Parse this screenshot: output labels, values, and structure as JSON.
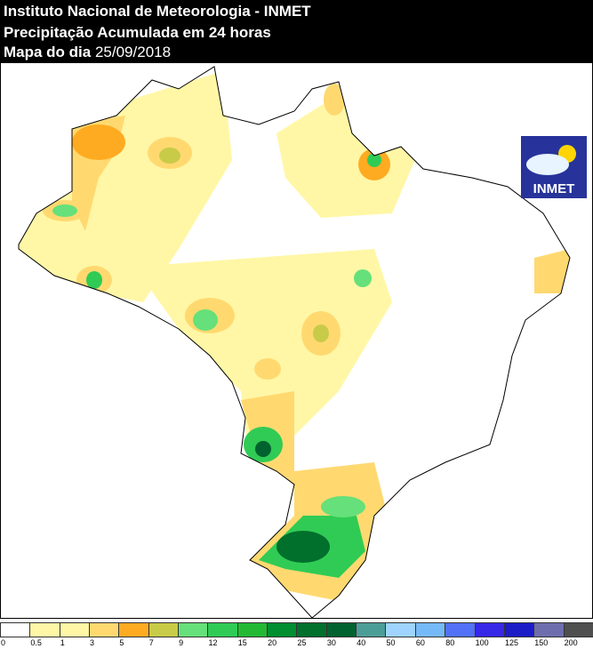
{
  "header": {
    "line1": "Instituto Nacional de Meteorologia - INMET",
    "line2": "Precipitação Acumulada em 24 horas",
    "line3_prefix": "Mapa do dia",
    "date": "25/09/2018"
  },
  "logo": {
    "text": "INMET"
  },
  "legend": {
    "unit_labels": [
      "0",
      "0.5",
      "1",
      "3",
      "5",
      "7",
      "9",
      "12",
      "15",
      "20",
      "25",
      "30",
      "40",
      "50",
      "60",
      "80",
      "100",
      "125",
      "150",
      "200"
    ],
    "colors": [
      "#ffffff",
      "#fff7a6",
      "#fff7a6",
      "#ffd970",
      "#ffab22",
      "#c8cb48",
      "#66e07a",
      "#30cb55",
      "#23b935",
      "#008e30",
      "#00702c",
      "#00622f",
      "#4b9e97",
      "#9ed4ff",
      "#76b9f8",
      "#5271f6",
      "#3727e6",
      "#1c1dc7",
      "#6e6eae",
      "#4f4f4f"
    ]
  }
}
